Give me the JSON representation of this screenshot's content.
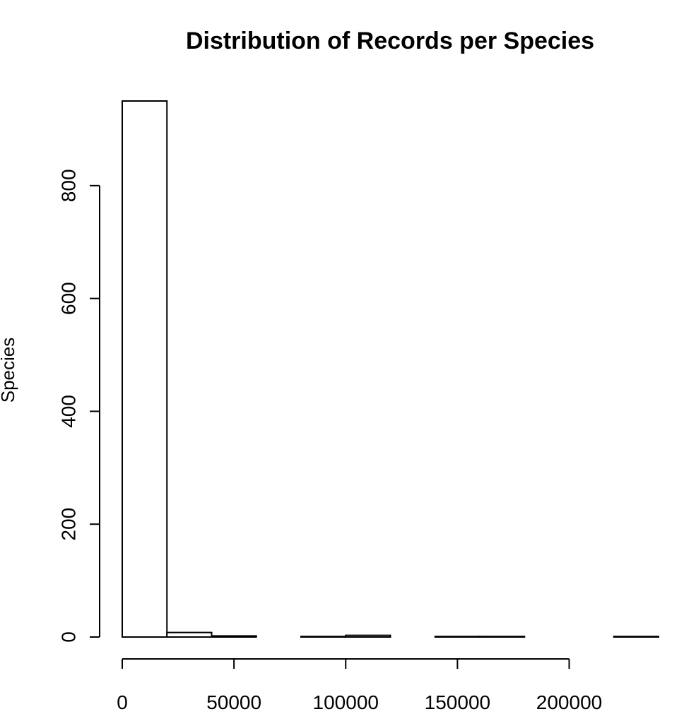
{
  "chart_data": {
    "type": "bar",
    "title": "Distribution of Records per Species",
    "xlabel": "",
    "ylabel": "Species",
    "bin_width": 20000,
    "bins": [
      {
        "start": 0,
        "end": 20000,
        "count": 950
      },
      {
        "start": 20000,
        "end": 40000,
        "count": 8
      },
      {
        "start": 40000,
        "end": 60000,
        "count": 2
      },
      {
        "start": 60000,
        "end": 80000,
        "count": 0
      },
      {
        "start": 80000,
        "end": 100000,
        "count": 1
      },
      {
        "start": 100000,
        "end": 120000,
        "count": 3
      },
      {
        "start": 120000,
        "end": 140000,
        "count": 0
      },
      {
        "start": 140000,
        "end": 160000,
        "count": 1
      },
      {
        "start": 160000,
        "end": 180000,
        "count": 1
      },
      {
        "start": 180000,
        "end": 200000,
        "count": 0
      },
      {
        "start": 200000,
        "end": 220000,
        "count": 0
      },
      {
        "start": 220000,
        "end": 240000,
        "count": 1
      }
    ],
    "x_ticks": [
      0,
      50000,
      100000,
      150000,
      200000
    ],
    "x_tick_labels": [
      "0",
      "50000",
      "100000",
      "150000",
      "200000"
    ],
    "y_ticks": [
      0,
      200,
      400,
      600,
      800
    ],
    "y_tick_labels": [
      "0",
      "200",
      "400",
      "600",
      "800"
    ],
    "xlim": [
      0,
      240000
    ],
    "ylim": [
      0,
      950
    ],
    "grid": false,
    "legend": "none"
  }
}
